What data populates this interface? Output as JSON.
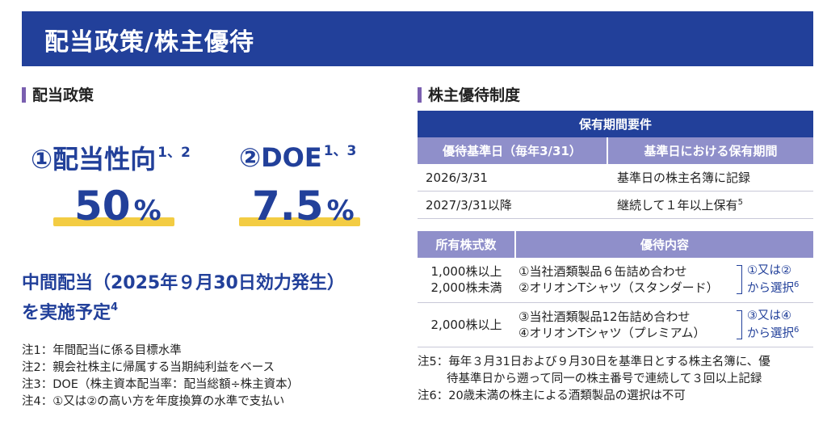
{
  "banner": {
    "title": "配当政策/株主優待"
  },
  "left": {
    "heading": "配当政策",
    "metrics": [
      {
        "label": "①配当性向",
        "sup": "1、2",
        "value": "50",
        "unit": "%"
      },
      {
        "label": "②DOE",
        "sup": "1、3",
        "value": "7.5",
        "unit": "%"
      }
    ],
    "interim": {
      "line1": "中間配当（2025年９月30日効力発生）",
      "line2": "を実施予定",
      "sup": "4"
    },
    "notes": [
      "注1：年間配当に係る目標水準",
      "注2：親会社株主に帰属する当期純利益をベース",
      "注3：DOE（株主資本配当率：配当総額÷株主資本）",
      "注4：①又は②の高い方を年度換算の水準で支払い"
    ]
  },
  "right": {
    "heading": "株主優待制度",
    "holding_table": {
      "title": "保有期間要件",
      "headers": [
        "優待基準日（毎年3/31）",
        "基準日における保有期間"
      ],
      "rows": [
        {
          "date": "2026/3/31",
          "period": "基準日の株主名簿に記録",
          "sup": ""
        },
        {
          "date": "2027/3/31以降",
          "period": "継続して１年以上保有",
          "sup": "5"
        }
      ]
    },
    "benefit_table": {
      "headers": [
        "所有株式数",
        "優待内容"
      ],
      "rows": [
        {
          "range": [
            "1,000株以上",
            "2,000株未満"
          ],
          "items": [
            "①当社酒類製品６缶詰め合わせ",
            "②オリオンTシャツ（スタンダード）"
          ],
          "choice": [
            "①又は②",
            "から選択"
          ],
          "sup": "6"
        },
        {
          "range": [
            "2,000株以上"
          ],
          "items": [
            "③当社酒類製品12缶詰め合わせ",
            "④オリオンTシャツ（プレミアム）"
          ],
          "choice": [
            "③又は④",
            "から選択"
          ],
          "sup": "6"
        }
      ]
    },
    "notes": {
      "note5_line1": "注5：毎年３月31日および９月30日を基準日とする株主名簿に、優",
      "note5_line2": "待基準日から遡って同一の株主番号で連続して３回以上記録",
      "note6": "注6：20歳未満の株主による酒類製品の選択は不可"
    }
  },
  "colors": {
    "navy": "#22409a",
    "lavender": "#8f8fca",
    "yellow": "#f3cc43",
    "accent": "#7a5fb0"
  }
}
